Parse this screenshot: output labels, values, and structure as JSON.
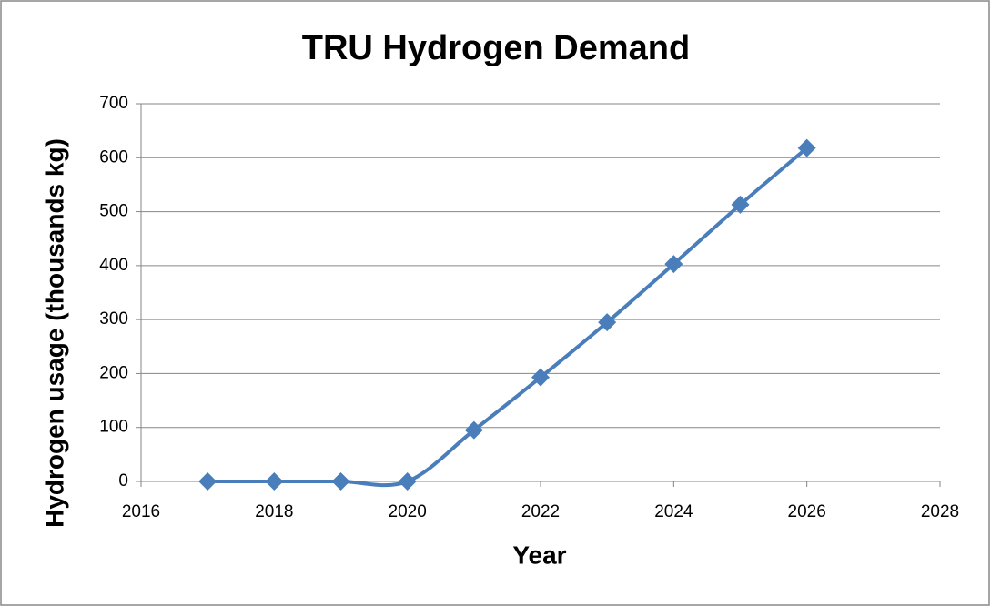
{
  "chart_data": {
    "type": "line",
    "title": "TRU Hydrogen Demand",
    "x_label": "Year",
    "y_label": "Hydrogen usage (thousands kg)",
    "x": [
      2017,
      2018,
      2019,
      2020,
      2021,
      2022,
      2023,
      2024,
      2025,
      2026
    ],
    "series": [
      {
        "name": "TRU Hydrogen Demand",
        "color": "#4a7ebb",
        "values": [
          0,
          0,
          0,
          0,
          95,
          193,
          295,
          403,
          513,
          618
        ]
      }
    ],
    "xlim": [
      2016,
      2028
    ],
    "xticks": [
      2016,
      2018,
      2020,
      2022,
      2024,
      2026,
      2028
    ],
    "ylim": [
      0,
      700
    ],
    "yticks": [
      0,
      100,
      200,
      300,
      400,
      500,
      600,
      700
    ],
    "grid": true,
    "smooth": true
  }
}
